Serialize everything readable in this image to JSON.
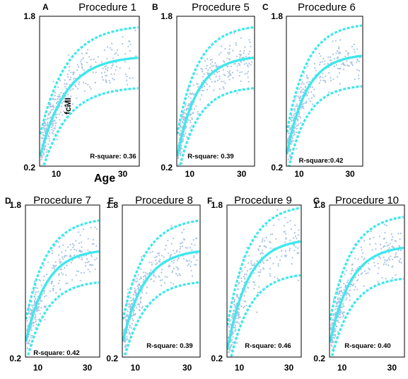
{
  "figure": {
    "ylabel": "fcMI",
    "xlabel": "Age"
  },
  "chart_data": [
    {
      "type": "scatter",
      "letter": "A",
      "title": "Procedure 1",
      "r_square_label": "R-square: 0.36",
      "xlim": [
        5,
        35
      ],
      "ylim": [
        0.2,
        1.8
      ],
      "x_ticks": [
        "10",
        "30"
      ],
      "y_ticks": [
        "0.2",
        "1.8"
      ],
      "fit": {
        "a": 1.38,
        "b": 1.1,
        "c": 0.13
      },
      "band": 0.33,
      "n_points": 330
    },
    {
      "type": "scatter",
      "letter": "B",
      "title": "Procedure 5",
      "r_square_label": "R-square: 0.39",
      "xlim": [
        5,
        35
      ],
      "ylim": [
        0.2,
        1.8
      ],
      "x_ticks": [
        "10",
        "30"
      ],
      "y_ticks": [
        "0.2",
        "1.8"
      ],
      "fit": {
        "a": 1.38,
        "b": 1.1,
        "c": 0.13
      },
      "band": 0.33,
      "n_points": 330
    },
    {
      "type": "scatter",
      "letter": "C",
      "title": "Procedure 6",
      "r_square_label": "R-square:0.42",
      "xlim": [
        5,
        35
      ],
      "ylim": [
        0.2,
        1.8
      ],
      "x_ticks": [
        "10",
        "30"
      ],
      "y_ticks": [
        "0.2",
        "1.8"
      ],
      "fit": {
        "a": 1.4,
        "b": 1.1,
        "c": 0.13
      },
      "band": 0.33,
      "n_points": 330
    },
    {
      "type": "scatter",
      "letter": "D",
      "title": "Procedure 7",
      "r_square_label": "R-square: 0.42",
      "xlim": [
        5,
        35
      ],
      "ylim": [
        0.2,
        1.8
      ],
      "x_ticks": [
        "10",
        "30"
      ],
      "y_ticks": [
        "0.2",
        "1.8"
      ],
      "fit": {
        "a": 1.34,
        "b": 1.0,
        "c": 0.12
      },
      "band": 0.33,
      "n_points": 330
    },
    {
      "type": "scatter",
      "letter": "E",
      "title": "Procedure 8",
      "r_square_label": "R-square: 0.39",
      "xlim": [
        5,
        35
      ],
      "ylim": [
        0.2,
        1.8
      ],
      "x_ticks": [
        "10",
        "30"
      ],
      "y_ticks": [
        "0.2",
        "1.8"
      ],
      "fit": {
        "a": 1.34,
        "b": 1.0,
        "c": 0.12
      },
      "band": 0.33,
      "n_points": 330
    },
    {
      "type": "scatter",
      "letter": "F",
      "title": "Procedure 9",
      "r_square_label": "R-square: 0.46",
      "xlim": [
        5,
        35
      ],
      "ylim": [
        0.2,
        1.8
      ],
      "x_ticks": [
        "10",
        "30"
      ],
      "y_ticks": [
        "0.2",
        "1.8"
      ],
      "fit": {
        "a": 1.45,
        "b": 1.2,
        "c": 0.12
      },
      "band": 0.36,
      "n_points": 330
    },
    {
      "type": "scatter",
      "letter": "G",
      "title": "Procedure 10",
      "r_square_label": "R-square: 0.40",
      "xlim": [
        5,
        35
      ],
      "ylim": [
        0.2,
        1.8
      ],
      "x_ticks": [
        "10",
        "30"
      ],
      "y_ticks": [
        "0.2",
        "1.8"
      ],
      "fit": {
        "a": 1.38,
        "b": 1.05,
        "c": 0.12
      },
      "band": 0.33,
      "n_points": 330
    }
  ],
  "colors": {
    "fit": "#3EE8EC",
    "points": "#A8C2E4",
    "frame": "#000000"
  }
}
